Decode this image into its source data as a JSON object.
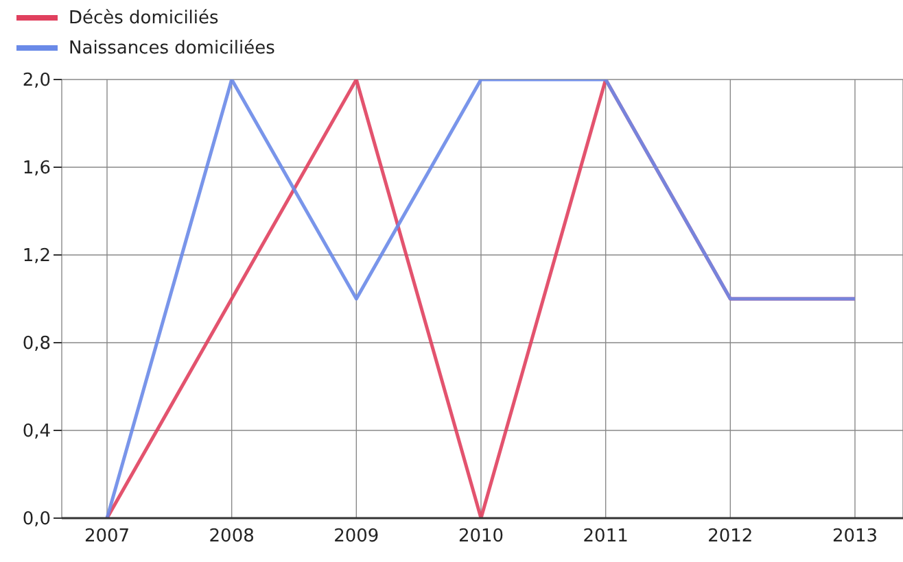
{
  "chart_data": {
    "type": "line",
    "categories": [
      "2007",
      "2008",
      "2009",
      "2010",
      "2011",
      "2012",
      "2013"
    ],
    "series": [
      {
        "name": "Décès domiciliés",
        "color": "#e0405e",
        "values": [
          0,
          1,
          2,
          0,
          2,
          1,
          1
        ]
      },
      {
        "name": "Naissances domiciliées",
        "color": "#6a8ae8",
        "values": [
          0,
          2,
          1,
          2,
          2,
          1,
          1
        ]
      }
    ],
    "ylim": [
      0,
      2
    ],
    "yticks": [
      {
        "value": 0,
        "label": "0,0"
      },
      {
        "value": 0.4,
        "label": "0,4"
      },
      {
        "value": 0.8,
        "label": "0,8"
      },
      {
        "value": 1.2,
        "label": "1,2"
      },
      {
        "value": 1.6,
        "label": "1,6"
      },
      {
        "value": 2,
        "label": "2,0"
      }
    ],
    "grid": true,
    "legend": "top left",
    "marker": "none",
    "line_style": "solid"
  }
}
